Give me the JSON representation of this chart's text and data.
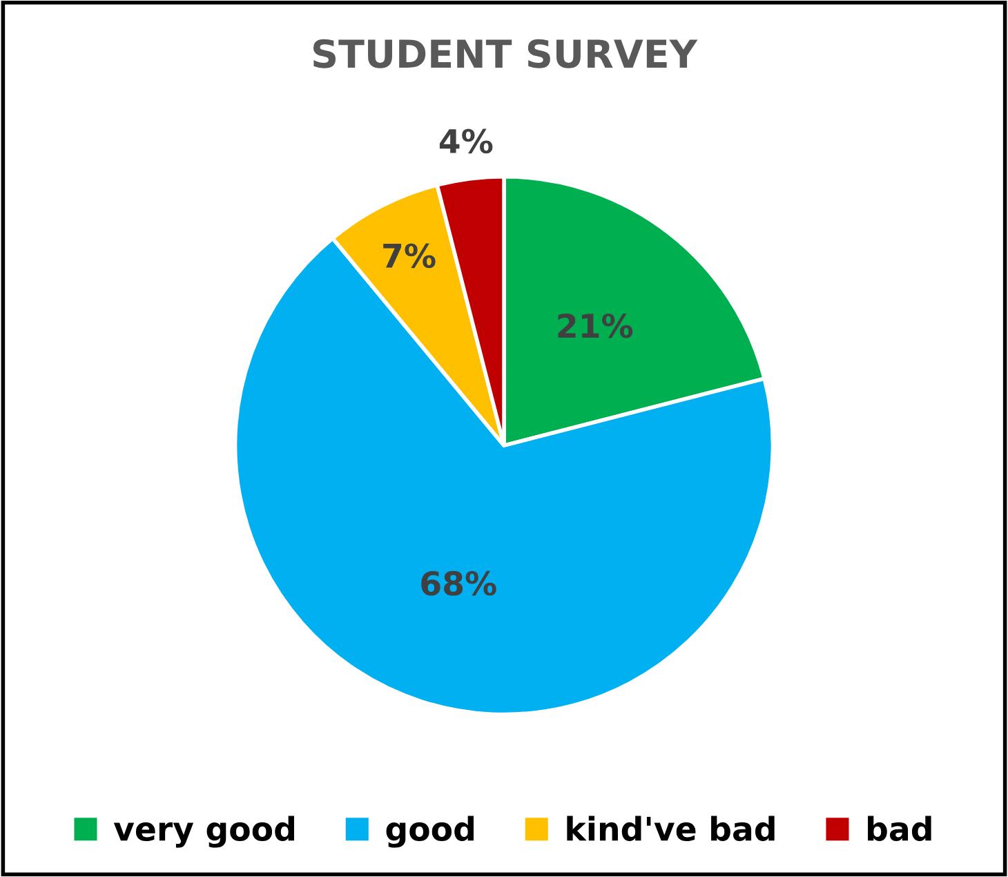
{
  "chart_data": {
    "type": "pie",
    "title": "STUDENT SURVEY",
    "categories": [
      "very good",
      "good",
      "kind've bad",
      "bad"
    ],
    "values": [
      21,
      68,
      7,
      4
    ],
    "colors": [
      "#00b050",
      "#00b0f0",
      "#ffc000",
      "#c00000"
    ],
    "value_labels": [
      "21%",
      "68%",
      "7%",
      "4%"
    ],
    "legend": "bottom"
  }
}
